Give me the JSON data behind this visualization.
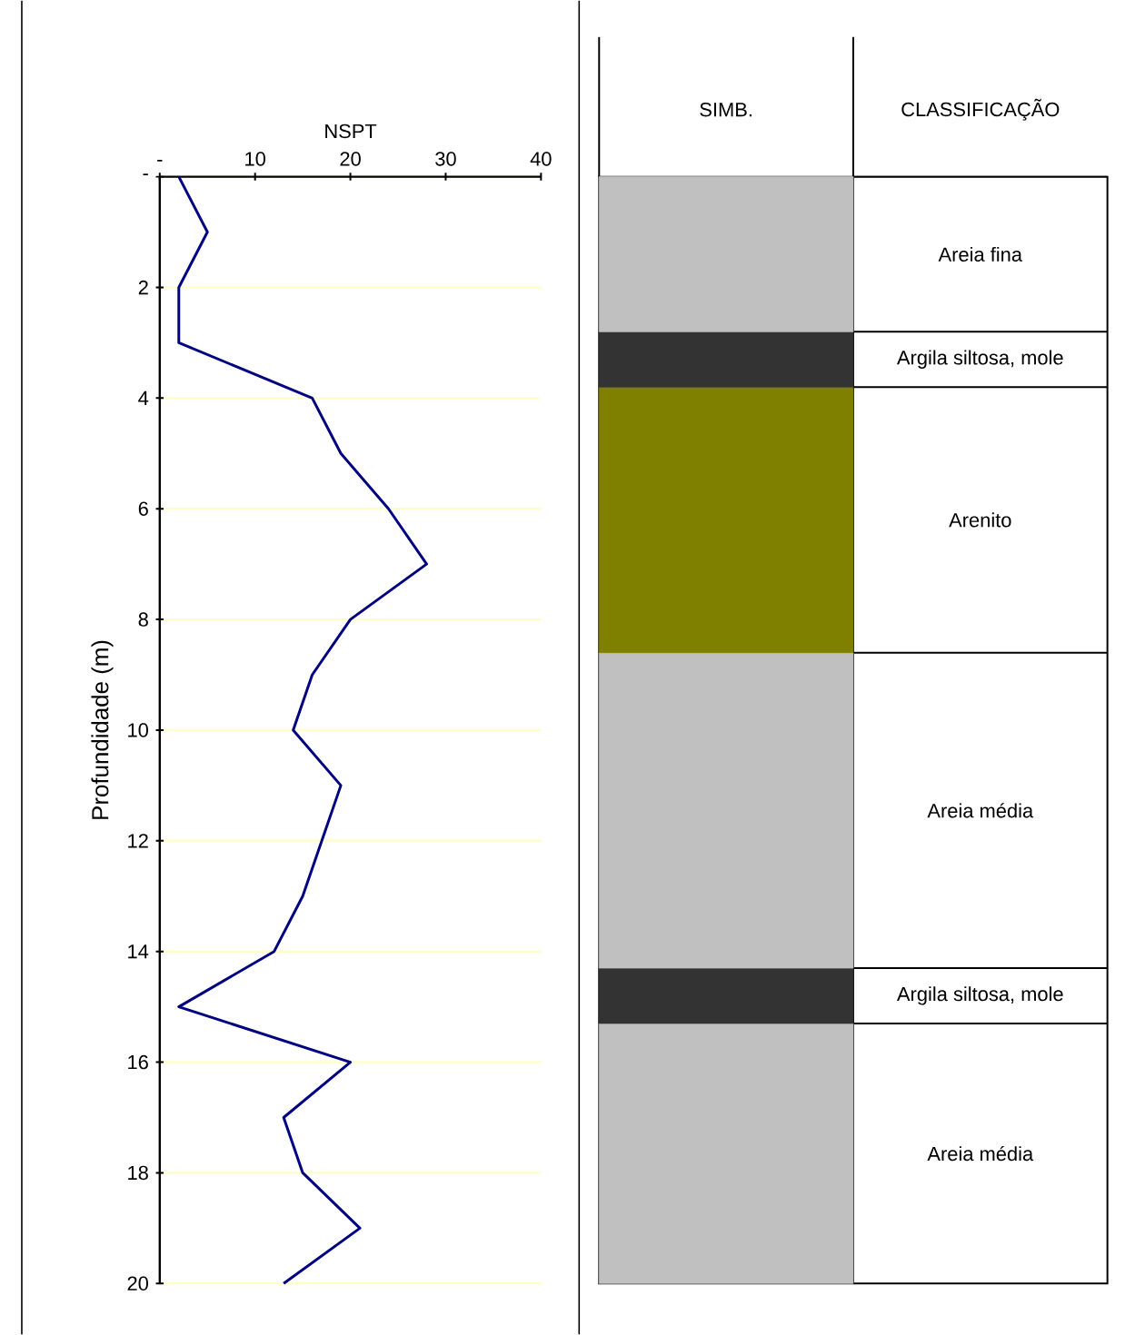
{
  "chart_data": [
    {
      "type": "line",
      "xlabel": "NSPT",
      "ylabel": "Profundidade (m)",
      "xlim": [
        0,
        40
      ],
      "xticks": [
        {
          "value": 0,
          "label": "-"
        },
        10,
        20,
        30,
        40
      ],
      "ylim": [
        20,
        0
      ],
      "yticks": [
        {
          "value": 0,
          "label": "-"
        },
        2,
        4,
        6,
        8,
        10,
        12,
        14,
        16,
        18,
        20
      ],
      "grid": "y",
      "marker": "none",
      "line_style": "solid",
      "series": [
        {
          "color": "#000080",
          "x": [
            2,
            5,
            2,
            2,
            16,
            19,
            24,
            28,
            20,
            16,
            14,
            19,
            17,
            15,
            12,
            2,
            20,
            13,
            15,
            21,
            13
          ],
          "values": [
            0,
            1,
            2,
            3,
            4,
            5,
            6,
            7,
            8,
            9,
            10,
            11,
            12,
            13,
            14,
            15,
            16,
            17,
            18,
            19,
            20
          ]
        }
      ]
    },
    {
      "type": "bar",
      "stacked": true,
      "categories": [
        null
      ],
      "ylim": [
        20,
        0
      ],
      "tick_labels": false,
      "annotations": [
        "SIMB.",
        "CLASSIFICAÇÃO"
      ],
      "series": [
        {
          "name": "Areia fina",
          "color": "#c0c0c0",
          "values": [
            2.8
          ]
        },
        {
          "name": "Argila siltosa, mole",
          "color": "#333333",
          "values": [
            1.0
          ]
        },
        {
          "name": "Arenito",
          "color": "#808000",
          "values": [
            4.8
          ]
        },
        {
          "name": "Areia média",
          "color": "#c0c0c0",
          "values": [
            5.7
          ]
        },
        {
          "name": "Argila siltosa, mole",
          "color": "#333333",
          "values": [
            1.0
          ]
        },
        {
          "name": "Areia média",
          "color": "#c0c0c0",
          "values": [
            4.7
          ]
        }
      ]
    }
  ]
}
